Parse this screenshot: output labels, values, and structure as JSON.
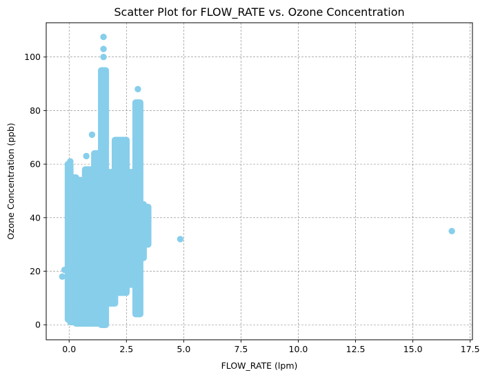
{
  "chart_data": {
    "type": "scatter",
    "title": "Scatter Plot for FLOW_RATE vs. Ozone Concentration",
    "xlabel": "FLOW_RATE (lpm)",
    "ylabel": "Ozone Concentration (ppb)",
    "xlim": [
      -1.0,
      17.6
    ],
    "ylim": [
      -5.6,
      112.8
    ],
    "xticks": [
      0.0,
      2.5,
      5.0,
      7.5,
      10.0,
      12.5,
      15.0,
      17.5
    ],
    "xtick_labels": [
      "0.0",
      "2.5",
      "5.0",
      "7.5",
      "10.0",
      "12.5",
      "15.0",
      "17.5"
    ],
    "yticks": [
      0,
      20,
      40,
      60,
      80,
      100
    ],
    "ytick_labels": [
      "0",
      "20",
      "40",
      "60",
      "80",
      "100"
    ],
    "grid": true,
    "marker_color": "#87ceeb",
    "clusters": [
      {
        "x": [
          -0.05,
          0.05
        ],
        "y": [
          2,
          60
        ]
      },
      {
        "x": [
          0.05,
          0.3
        ],
        "y": [
          1,
          55
        ]
      },
      {
        "x": [
          0.3,
          0.7
        ],
        "y": [
          0.5,
          54
        ]
      },
      {
        "x": [
          0.7,
          1.1
        ],
        "y": [
          0.5,
          58
        ]
      },
      {
        "x": [
          1.1,
          1.4
        ],
        "y": [
          0.5,
          64
        ]
      },
      {
        "x": [
          1.4,
          1.6
        ],
        "y": [
          0,
          95
        ]
      },
      {
        "x": [
          1.6,
          2.0
        ],
        "y": [
          8,
          57
        ]
      },
      {
        "x": [
          2.0,
          2.5
        ],
        "y": [
          12,
          69
        ]
      },
      {
        "x": [
          2.5,
          2.9
        ],
        "y": [
          15,
          57
        ]
      },
      {
        "x": [
          2.9,
          3.1
        ],
        "y": [
          4,
          83
        ]
      },
      {
        "x": [
          3.1,
          3.25
        ],
        "y": [
          25,
          45
        ]
      },
      {
        "x": [
          3.25,
          3.45
        ],
        "y": [
          30,
          44
        ]
      }
    ],
    "points": [
      {
        "x": -0.3,
        "y": 18
      },
      {
        "x": -0.2,
        "y": 20.5
      },
      {
        "x": 0.05,
        "y": 61
      },
      {
        "x": 0.75,
        "y": 63
      },
      {
        "x": 1.0,
        "y": 71
      },
      {
        "x": 1.5,
        "y": 107.5
      },
      {
        "x": 1.5,
        "y": 103
      },
      {
        "x": 1.5,
        "y": 100
      },
      {
        "x": 1.52,
        "y": 94
      },
      {
        "x": 3.0,
        "y": 88
      },
      {
        "x": 3.45,
        "y": 31
      },
      {
        "x": 4.85,
        "y": 32
      },
      {
        "x": 16.7,
        "y": 35
      }
    ]
  }
}
